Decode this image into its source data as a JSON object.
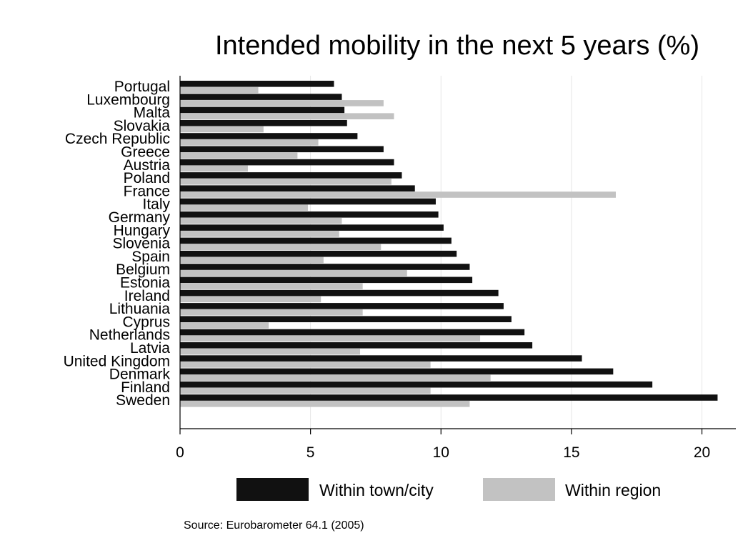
{
  "chart_data": {
    "type": "bar",
    "orientation": "horizontal",
    "title": "Intended mobility in the next 5 years (%)",
    "xlabel": "",
    "ylabel": "",
    "xlim": [
      0,
      21.3
    ],
    "xticks": [
      "0",
      "5",
      "10",
      "15",
      "20"
    ],
    "xtick_values": [
      0,
      5,
      10,
      15,
      20
    ],
    "grid": true,
    "legend_position": "bottom",
    "categories": [
      "Portugal",
      "Luxembourg",
      "Malta",
      "Slovakia",
      "Czech Republic",
      "Greece",
      "Austria",
      "Poland",
      "France",
      "Italy",
      "Germany",
      "Hungary",
      "Slovenia",
      "Spain",
      "Belgium",
      "Estonia",
      "Ireland",
      "Lithuania",
      "Cyprus",
      "Netherlands",
      "Latvia",
      "United Kingdom",
      "Denmark",
      "Finland",
      "Sweden"
    ],
    "series": [
      {
        "name": "Within town/city",
        "color": "#111111",
        "values": [
          5.9,
          6.2,
          6.3,
          6.4,
          6.8,
          7.8,
          8.2,
          8.5,
          9.0,
          9.8,
          9.9,
          10.1,
          10.4,
          10.6,
          11.1,
          11.2,
          12.2,
          12.4,
          12.7,
          13.2,
          13.5,
          15.4,
          16.6,
          18.1,
          20.6
        ]
      },
      {
        "name": "Within region",
        "color": "#c2c2c2",
        "values": [
          3.0,
          7.8,
          8.2,
          3.2,
          5.3,
          4.5,
          2.6,
          8.1,
          16.7,
          4.9,
          6.2,
          6.1,
          7.7,
          5.5,
          8.7,
          7.0,
          5.4,
          7.0,
          3.4,
          11.5,
          6.9,
          9.6,
          11.9,
          9.6,
          11.1
        ]
      }
    ]
  },
  "source": "Source: Eurobarometer 64.1 (2005)"
}
